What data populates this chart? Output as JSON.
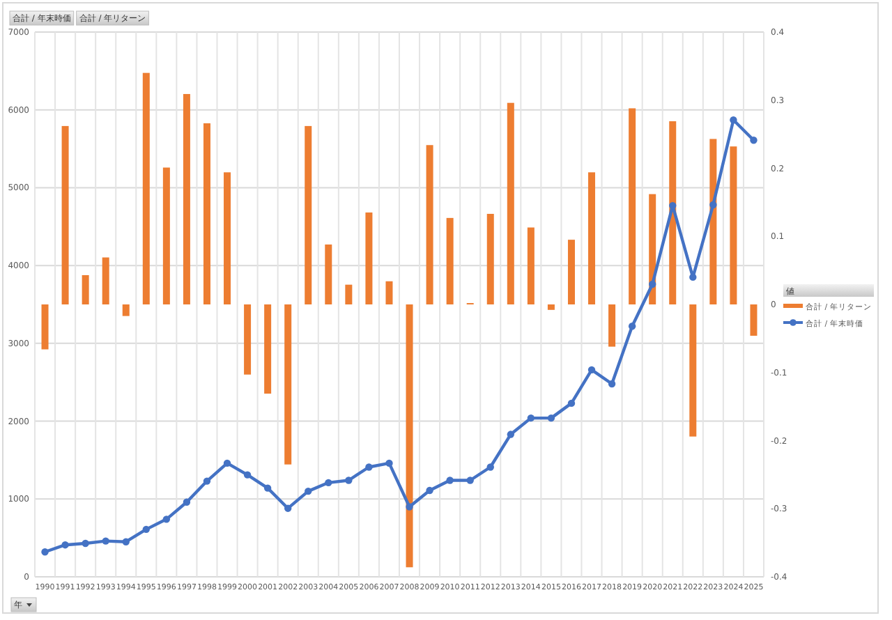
{
  "chart_data": {
    "type": "bar",
    "categories": [
      "1990",
      "1991",
      "1992",
      "1993",
      "1994",
      "1995",
      "1996",
      "1997",
      "1998",
      "1999",
      "2000",
      "2001",
      "2002",
      "2003",
      "2004",
      "2005",
      "2006",
      "2007",
      "2008",
      "2009",
      "2010",
      "2011",
      "2012",
      "2013",
      "2014",
      "2015",
      "2016",
      "2017",
      "2018",
      "2019",
      "2020",
      "2021",
      "2022",
      "2023",
      "2024",
      "2025"
    ],
    "series": [
      {
        "name": "合計 / 年リターン",
        "axis": "y2",
        "color": "#ed7d31",
        "values": [
          -0.066,
          0.262,
          0.043,
          0.069,
          -0.017,
          0.34,
          0.201,
          0.309,
          0.266,
          0.194,
          -0.103,
          -0.131,
          -0.235,
          0.262,
          0.088,
          0.029,
          0.135,
          0.034,
          -0.386,
          0.234,
          0.127,
          0.002,
          0.133,
          0.296,
          0.113,
          -0.008,
          0.095,
          0.194,
          -0.062,
          0.288,
          0.162,
          0.269,
          -0.194,
          0.243,
          0.232,
          -0.046
        ]
      },
      {
        "name": "合計 / 年末時価",
        "type": "line",
        "axis": "y",
        "color": "#4472c4",
        "marker": "circle",
        "values": [
          320,
          410,
          430,
          460,
          450,
          610,
          740,
          960,
          1230,
          1460,
          1310,
          1140,
          880,
          1100,
          1210,
          1240,
          1410,
          1460,
          900,
          1110,
          1240,
          1240,
          1410,
          1830,
          2040,
          2040,
          2230,
          2660,
          2480,
          3220,
          3760,
          4770,
          3850,
          4780,
          5870,
          5610
        ]
      }
    ],
    "ylim": [
      0,
      7000
    ],
    "yticks": [
      0,
      1000,
      2000,
      3000,
      4000,
      5000,
      6000,
      7000
    ],
    "y2lim": [
      -0.4,
      0.4
    ],
    "y2ticks": [
      -0.4,
      -0.3,
      -0.2,
      -0.1,
      0,
      0.1,
      0.2,
      0.3,
      0.4
    ],
    "xlabel": "年",
    "legend_title": "値",
    "legend": "right",
    "grid": true,
    "annotations": [
      "合計 / 年末時価",
      "合計 / 年リターン"
    ]
  }
}
